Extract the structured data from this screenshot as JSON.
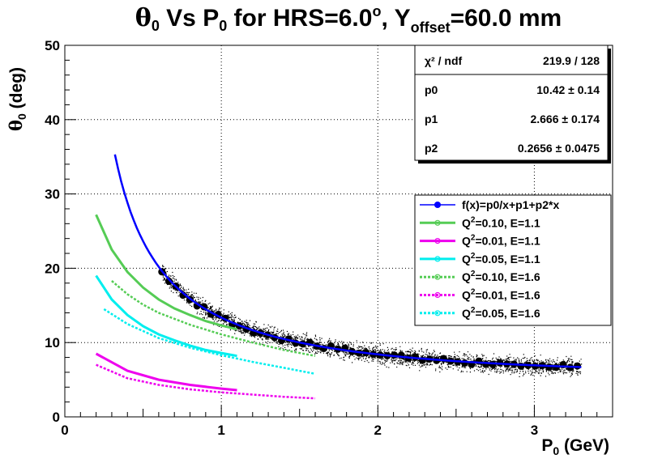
{
  "chart_data": {
    "type": "scatter",
    "title": {
      "part1": "θ",
      "part1_sub": "0",
      "part2": " Vs P",
      "part2_sub": "0",
      "part3": " for HRS=6.0",
      "part3_sup": "o",
      "part4": ", Y",
      "part4_sub": "offset",
      "part5": "=60.0 mm"
    },
    "xlabel": {
      "main": "P",
      "sub": "0",
      "unit": " (GeV)"
    },
    "ylabel": {
      "main": "θ",
      "sub": "0",
      "unit": " (deg)"
    },
    "xlim": [
      0,
      3.5
    ],
    "ylim": [
      0,
      50
    ],
    "x_ticks": [
      "0",
      "1",
      "2",
      "3"
    ],
    "y_ticks": [
      "0",
      "10",
      "20",
      "30",
      "40",
      "50"
    ],
    "grid": true,
    "stats_box": {
      "position": "top-right",
      "rows": [
        {
          "label": "χ² / ndf",
          "value": "219.9 / 128"
        },
        {
          "label": "p0",
          "value": "10.42 ± 0.14"
        },
        {
          "label": "p1",
          "value": "2.666 ± 0.174"
        },
        {
          "label": "p2",
          "value": "0.2656 ± 0.0475"
        }
      ]
    },
    "fit": {
      "name": "f(x)=p0/x+p1+p2*x",
      "p0": 10.42,
      "p1": 2.666,
      "p2": 0.2656,
      "x_range": [
        0.32,
        3.3
      ],
      "color": "#0000ff"
    },
    "scatter": {
      "x_range": [
        0.62,
        3.3
      ],
      "color": "#000000"
    },
    "series": [
      {
        "name": "Q²=0.10, E=1.1",
        "style": "solid",
        "color": "#55cc55",
        "x": [
          0.2,
          0.3,
          0.4,
          0.5,
          0.6,
          0.7,
          0.8,
          0.9,
          1.0,
          1.1
        ],
        "y": [
          27.2,
          22.5,
          19.5,
          17.4,
          15.8,
          14.6,
          13.7,
          12.9,
          12.3,
          11.8
        ]
      },
      {
        "name": "Q²=0.01, E=1.1",
        "style": "solid",
        "color": "#ee00ee",
        "x": [
          0.2,
          0.4,
          0.6,
          0.8,
          1.0,
          1.1
        ],
        "y": [
          8.5,
          6.2,
          5.0,
          4.3,
          3.8,
          3.6
        ]
      },
      {
        "name": "Q²=0.05, E=1.1",
        "style": "solid",
        "color": "#00eeee",
        "x": [
          0.2,
          0.3,
          0.4,
          0.5,
          0.6,
          0.7,
          0.8,
          0.9,
          1.0,
          1.1
        ],
        "y": [
          19.0,
          15.8,
          13.7,
          12.2,
          11.1,
          10.3,
          9.6,
          9.0,
          8.6,
          8.2
        ]
      },
      {
        "name": "Q²=0.10, E=1.6",
        "style": "dashed",
        "color": "#55cc55",
        "x": [
          0.3,
          0.4,
          0.5,
          0.6,
          0.8,
          1.0,
          1.2,
          1.4,
          1.6
        ],
        "y": [
          18.3,
          16.5,
          15.1,
          14.0,
          12.4,
          11.1,
          10.0,
          9.0,
          8.2
        ]
      },
      {
        "name": "Q²=0.01, E=1.6",
        "style": "dashed",
        "color": "#ee00ee",
        "x": [
          0.2,
          0.4,
          0.6,
          0.8,
          1.0,
          1.2,
          1.4,
          1.6
        ],
        "y": [
          7.0,
          5.2,
          4.3,
          3.7,
          3.3,
          3.0,
          2.7,
          2.5
        ]
      },
      {
        "name": "Q²=0.05, E=1.6",
        "style": "dashed",
        "color": "#00eeee",
        "x": [
          0.25,
          0.4,
          0.6,
          0.8,
          1.0,
          1.2,
          1.4,
          1.6
        ],
        "y": [
          14.5,
          12.5,
          10.6,
          9.3,
          8.3,
          7.4,
          6.6,
          5.8
        ]
      }
    ]
  }
}
